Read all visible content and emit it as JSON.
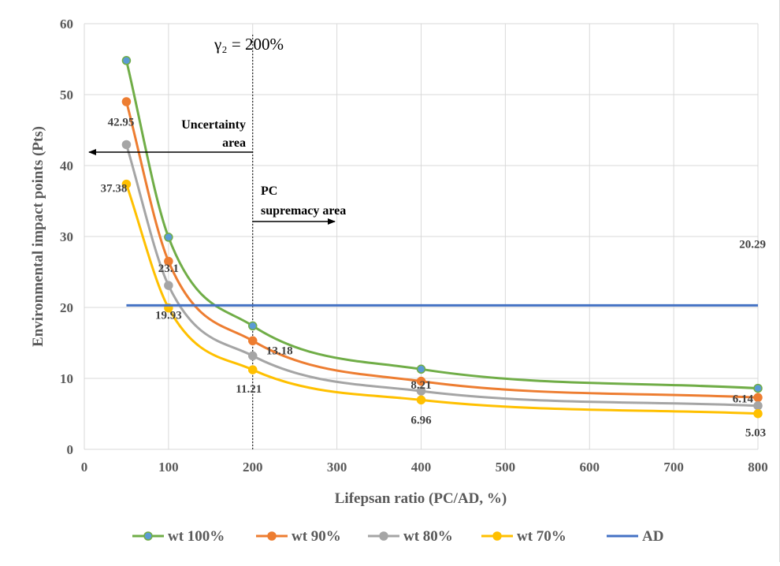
{
  "chart_data": {
    "type": "line",
    "xlabel": "Lifepsan ratio (PC/AD, %)",
    "ylabel": "Environmental impact points (Pts)",
    "xlim": [
      0,
      800
    ],
    "ylim": [
      0,
      60
    ],
    "xticks": [
      "0",
      "100",
      "200",
      "300",
      "400",
      "500",
      "600",
      "700",
      "800"
    ],
    "yticks": [
      "0",
      "10",
      "20",
      "30",
      "40",
      "50",
      "60"
    ],
    "grid": true,
    "legend_position": "bottom",
    "series": [
      {
        "name": "wt 100%",
        "color": "#70ad47",
        "marker_color": "#5b9bd5",
        "x": [
          50,
          100,
          200,
          400,
          800
        ],
        "values": [
          54.8,
          29.9,
          17.4,
          11.3,
          8.6
        ]
      },
      {
        "name": "wt 90%",
        "color": "#ed7d31",
        "marker_color": "#ed7d31",
        "x": [
          50,
          100,
          200,
          400,
          800
        ],
        "values": [
          49.0,
          26.5,
          15.3,
          9.6,
          7.3
        ]
      },
      {
        "name": "wt 80%",
        "color": "#a5a5a5",
        "marker_color": "#a5a5a5",
        "x": [
          50,
          100,
          200,
          400,
          800
        ],
        "values": [
          42.95,
          23.1,
          13.18,
          8.21,
          6.14
        ]
      },
      {
        "name": "wt 70%",
        "color": "#ffc000",
        "marker_color": "#ffc000",
        "x": [
          50,
          100,
          200,
          400,
          800
        ],
        "values": [
          37.38,
          19.93,
          11.21,
          6.96,
          5.03
        ]
      },
      {
        "name": "AD",
        "color": "#4472c4",
        "x": [
          50,
          800
        ],
        "values": [
          20.29,
          20.29
        ]
      }
    ],
    "data_labels": [
      {
        "text": "42.95",
        "x": 50,
        "y": 42.95
      },
      {
        "text": "37.38",
        "x": 50,
        "y": 37.38
      },
      {
        "text": "23.1",
        "x": 100,
        "y": 23.1
      },
      {
        "text": "19.93",
        "x": 100,
        "y": 19.93
      },
      {
        "text": "13.18",
        "x": 200,
        "y": 13.18
      },
      {
        "text": "11.21",
        "x": 200,
        "y": 11.21
      },
      {
        "text": "8.21",
        "x": 400,
        "y": 8.21
      },
      {
        "text": "6.96",
        "x": 400,
        "y": 6.96
      },
      {
        "text": "6.14",
        "x": 800,
        "y": 6.14
      },
      {
        "text": "5.03",
        "x": 800,
        "y": 5.03
      },
      {
        "text": "20.29",
        "x": 800,
        "y": 20.29
      }
    ],
    "reference_line": {
      "x": 200,
      "label": "γ₂ = 200%"
    },
    "annotations": {
      "uncertainty_line1": "Uncertainty",
      "uncertainty_line2": "area",
      "pc_line1": "PC",
      "pc_line2": "supremacy area"
    }
  }
}
